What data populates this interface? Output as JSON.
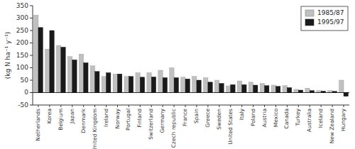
{
  "chart_data": {
    "type": "bar",
    "categories": [
      "Netherlands",
      "Korea",
      "Belgium",
      "Japan",
      "Denmark",
      "United Kingdom",
      "Ireland",
      "Norway",
      "Portugal",
      "Finland",
      "Switzerland",
      "Germany",
      "Czech republic",
      "France",
      "Spain",
      "Greece",
      "Sweden",
      "United States",
      "Italy",
      "Poland",
      "Austria",
      "Mexico",
      "Canada",
      "Turkey",
      "Australia",
      "Iceland",
      "New Zealand",
      "Hungary"
    ],
    "series": [
      {
        "name": "1985/87",
        "color": "#c0c0c0",
        "values": [
          312,
          175,
          190,
          145,
          155,
          108,
          65,
          75,
          65,
          80,
          80,
          90,
          100,
          62,
          65,
          60,
          50,
          27,
          47,
          42,
          37,
          30,
          28,
          13,
          18,
          8,
          8,
          50
        ]
      },
      {
        "name": "1995/97",
        "color": "#1a1a1a",
        "values": [
          262,
          250,
          183,
          132,
          120,
          85,
          80,
          75,
          65,
          62,
          63,
          60,
          60,
          55,
          50,
          42,
          37,
          32,
          32,
          30,
          28,
          25,
          20,
          10,
          8,
          6,
          5,
          -15
        ]
      }
    ],
    "y_label": "(kg N ha⁻¹ y⁻¹)",
    "ylim": [
      -50,
      350
    ],
    "yticks": [
      -50,
      0,
      50,
      100,
      150,
      200,
      250,
      300,
      350
    ],
    "grid": false,
    "legend": "upper right"
  }
}
